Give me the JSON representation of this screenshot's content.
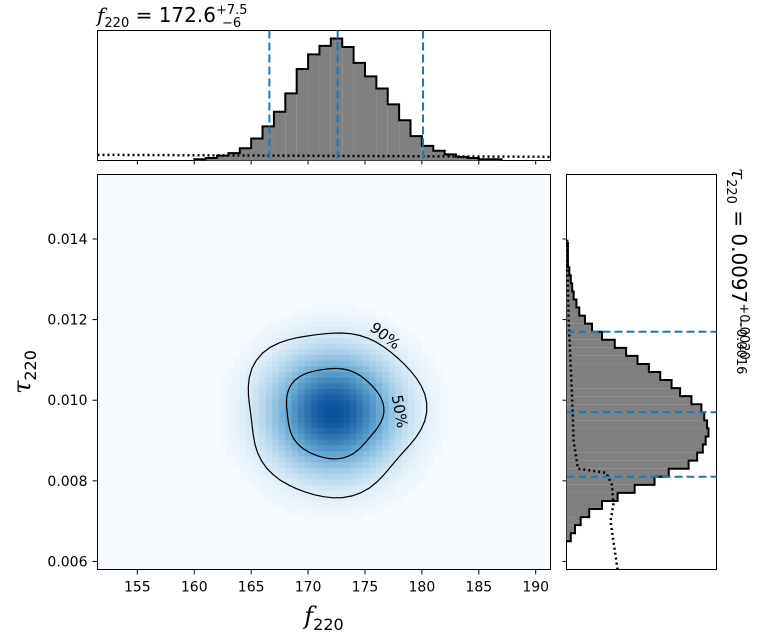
{
  "chart_data": [
    {
      "panel": "top-marginal",
      "type": "histogram",
      "title": {
        "symbol": "f",
        "sub": "220",
        "text": " = 172.6",
        "sup": "+7.5",
        "low": "−6"
      },
      "x": [
        160.5,
        161.5,
        162.5,
        163.5,
        164.5,
        165.5,
        166.5,
        167.5,
        168.5,
        169.5,
        170.5,
        171.5,
        172.5,
        173.5,
        174.5,
        175.5,
        176.5,
        177.5,
        178.5,
        179.5,
        180.5,
        181.5,
        182.5,
        183.5,
        184.5,
        185.5,
        186.5
      ],
      "values": [
        0.01,
        0.02,
        0.04,
        0.06,
        0.1,
        0.18,
        0.28,
        0.4,
        0.55,
        0.75,
        0.87,
        0.94,
        1.0,
        0.93,
        0.8,
        0.69,
        0.59,
        0.46,
        0.33,
        0.2,
        0.12,
        0.08,
        0.05,
        0.03,
        0.02,
        0.01,
        0.01
      ],
      "prior_value": 0.03,
      "quantile_lines": [
        166.6,
        172.6,
        180.1
      ],
      "xlim": [
        151.5,
        191.3
      ]
    },
    {
      "panel": "joint",
      "type": "heatmap",
      "xlabel": {
        "symbol": "f",
        "sub": "220"
      },
      "ylabel": {
        "symbol": "τ",
        "sub": "220"
      },
      "x_ticks": [
        "155",
        "160",
        "165",
        "170",
        "175",
        "180",
        "185",
        "190"
      ],
      "y_ticks": [
        "0.006",
        "0.008",
        "0.010",
        "0.012",
        "0.014"
      ],
      "xlim": [
        151.5,
        191.3
      ],
      "ylim": [
        0.0058,
        0.0156
      ],
      "peak": [
        172.2,
        0.0097
      ],
      "contour_labels": [
        "90%",
        "50%"
      ]
    },
    {
      "panel": "right-marginal",
      "type": "histogram",
      "title": {
        "symbol": "τ",
        "sub": "220",
        "text": " = 0.0097",
        "sup": "+0.0020",
        "low": "−0.0016"
      },
      "y": [
        0.0066,
        0.0068,
        0.007,
        0.0072,
        0.0074,
        0.0076,
        0.0078,
        0.008,
        0.0082,
        0.0084,
        0.0086,
        0.0088,
        0.009,
        0.0092,
        0.0094,
        0.0096,
        0.0098,
        0.01,
        0.0102,
        0.0104,
        0.0106,
        0.0108,
        0.011,
        0.0112,
        0.0114,
        0.0116,
        0.0118,
        0.012,
        0.0122,
        0.0124,
        0.0126,
        0.0128,
        0.013,
        0.0132,
        0.0134,
        0.0136,
        0.0138
      ],
      "values": [
        0.03,
        0.06,
        0.1,
        0.16,
        0.25,
        0.36,
        0.48,
        0.62,
        0.72,
        0.86,
        0.92,
        0.96,
        0.98,
        1.0,
        0.99,
        0.97,
        0.95,
        0.88,
        0.8,
        0.74,
        0.66,
        0.58,
        0.5,
        0.42,
        0.34,
        0.25,
        0.18,
        0.13,
        0.09,
        0.07,
        0.05,
        0.04,
        0.03,
        0.02,
        0.01,
        0.01,
        0.01
      ],
      "quantile_lines": [
        0.0081,
        0.0097,
        0.0117
      ],
      "ylim": [
        0.0058,
        0.0156
      ]
    }
  ],
  "colors": {
    "hist_fill": "#808080",
    "quantile_line": "#1f77b4",
    "heat_low": "#f7fbff",
    "heat_high": "#08519c"
  }
}
